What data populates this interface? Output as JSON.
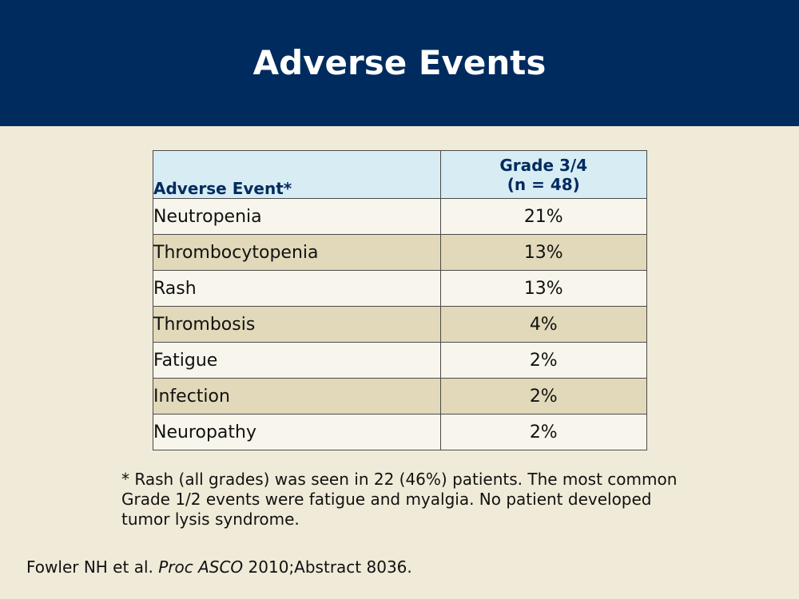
{
  "slide": {
    "title": "Adverse Events",
    "colors": {
      "header_bg": "#002b5e",
      "slide_bg": "#f0ead8",
      "table_header_bg": "#d8ecf4",
      "row_light": "#f8f6ec",
      "row_dark": "#e2d9ba"
    }
  },
  "table": {
    "headers": {
      "event": "Adverse Event*",
      "grade_line1": "Grade 3/4",
      "grade_line2": "(n = 48)"
    },
    "rows": [
      {
        "event": "Neutropenia",
        "grade": "21%"
      },
      {
        "event": "Thrombocytopenia",
        "grade": "13%"
      },
      {
        "event": "Rash",
        "grade": "13%"
      },
      {
        "event": "Thrombosis",
        "grade": "4%"
      },
      {
        "event": "Fatigue",
        "grade": "2%"
      },
      {
        "event": "Infection",
        "grade": "2%"
      },
      {
        "event": "Neuropathy",
        "grade": "2%"
      }
    ]
  },
  "footnote": "* Rash (all grades) was seen in 22 (46%) patients. The most common Grade 1/2 events were fatigue and myalgia. No patient developed tumor lysis syndrome.",
  "citation": {
    "authors": "Fowler NH et al. ",
    "journal": "Proc ASCO",
    "details": " 2010;Abstract 8036."
  }
}
